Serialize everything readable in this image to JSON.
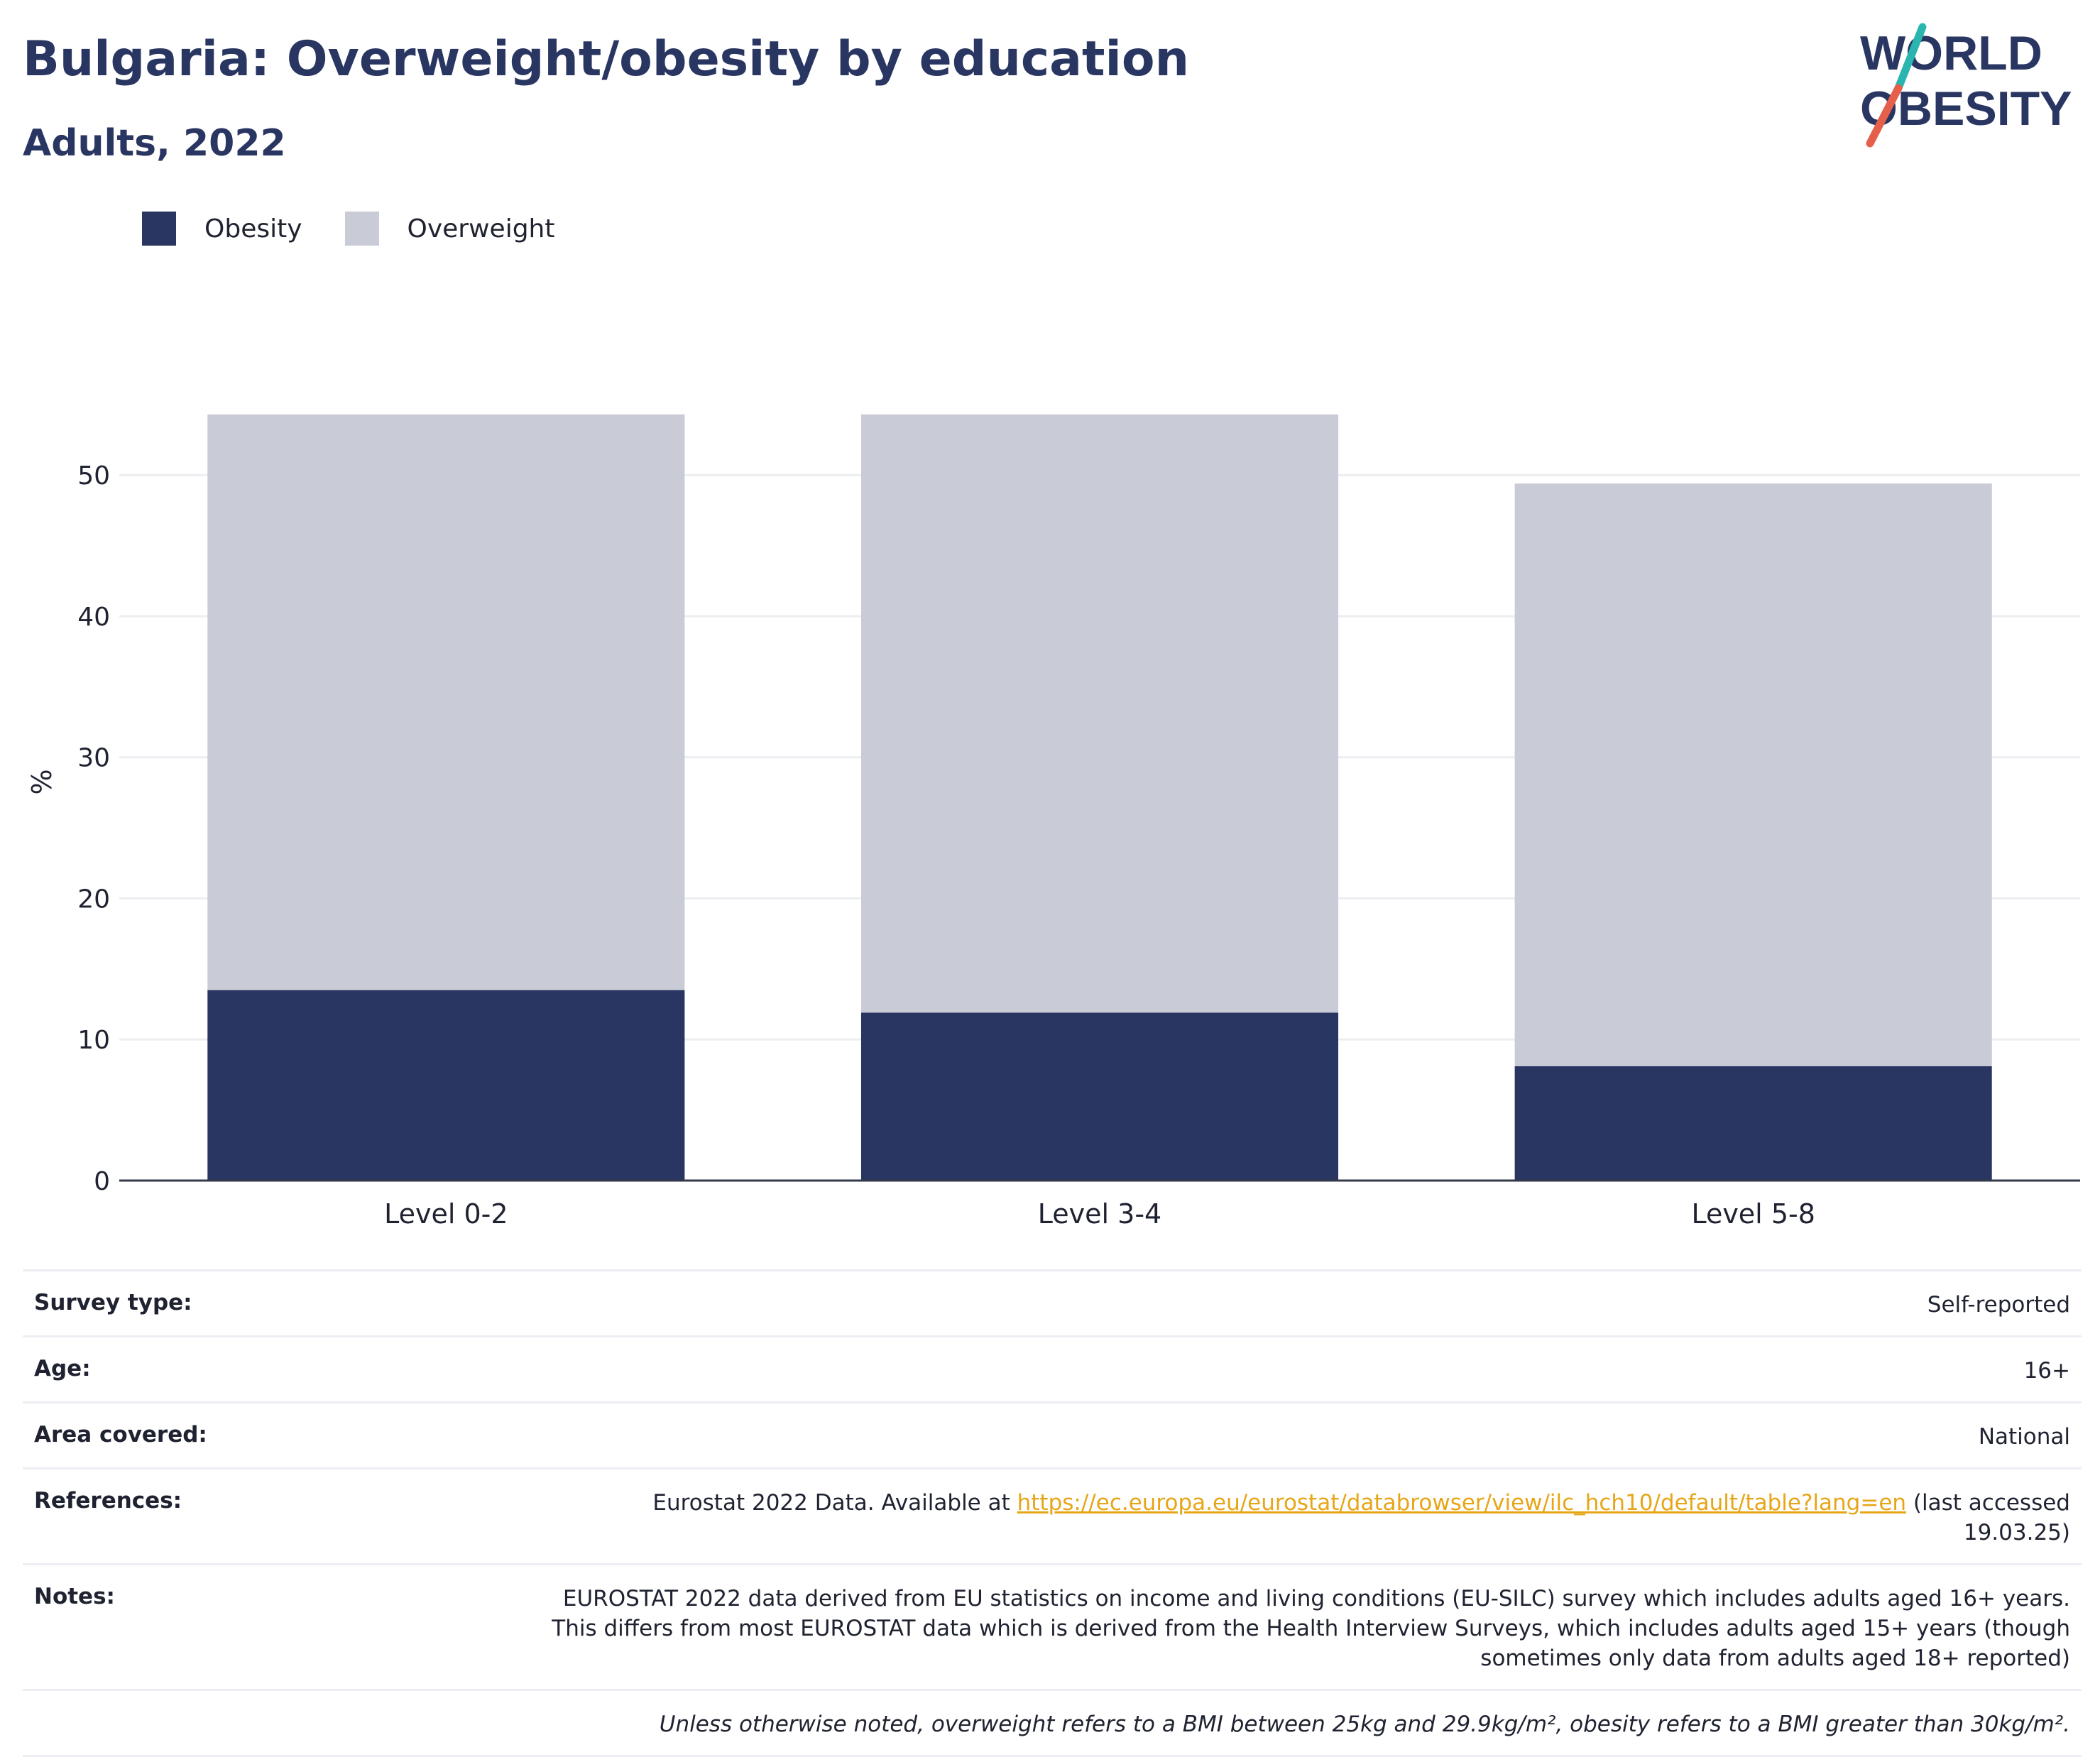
{
  "header": {
    "title": "Bulgaria: Overweight/obesity by education",
    "subtitle": "Adults, 2022"
  },
  "logo": {
    "line1": "WORLD",
    "line2": "OBESITY"
  },
  "colors": {
    "obesity": "#2a3662",
    "overweight": "#c9ccd7",
    "accent_teal": "#2bb5b0",
    "accent_red": "#e5604a",
    "link": "#e6a617"
  },
  "legend": [
    {
      "label": "Obesity",
      "color": "#2a3662"
    },
    {
      "label": "Overweight",
      "color": "#c9ccd7"
    }
  ],
  "chart_data": {
    "type": "bar",
    "stacked": true,
    "title": "Bulgaria: Overweight/obesity by education",
    "subtitle": "Adults, 2022",
    "xlabel": "",
    "ylabel": "%",
    "ylim": [
      0,
      56.5
    ],
    "yticks": [
      0,
      10,
      20,
      30,
      40,
      50
    ],
    "grid": true,
    "legend_position": "top-left",
    "categories": [
      "Level 0-2",
      "Level 3-4",
      "Level 5-8"
    ],
    "series": [
      {
        "name": "Obesity",
        "values": [
          13.5,
          11.9,
          8.1
        ]
      },
      {
        "name": "Overweight",
        "values": [
          40.8,
          42.4,
          41.3
        ]
      }
    ]
  },
  "info": {
    "survey_type": {
      "label": "Survey type:",
      "value": "Self-reported"
    },
    "age": {
      "label": "Age:",
      "value": "16+"
    },
    "area": {
      "label": "Area covered:",
      "value": "National"
    },
    "references": {
      "label": "References:",
      "prefix": "Eurostat 2022 Data. Available at ",
      "link": "https://ec.europa.eu/eurostat/databrowser/view/ilc_hch10/default/table?lang=en",
      "suffix": " (last accessed 19.03.25)"
    },
    "notes": {
      "label": "Notes:",
      "value": "EUROSTAT 2022 data derived from EU statistics on income and living conditions (EU-SILC) survey which includes adults aged 16+ years. This differs from most EUROSTAT data which is derived from the Health Interview Surveys, which includes adults aged 15+ years (though sometimes only data from adults aged 18+ reported)"
    },
    "footnote": "Unless otherwise noted, overweight refers to a BMI between 25kg and 29.9kg/m², obesity refers to a BMI greater than 30kg/m²."
  }
}
